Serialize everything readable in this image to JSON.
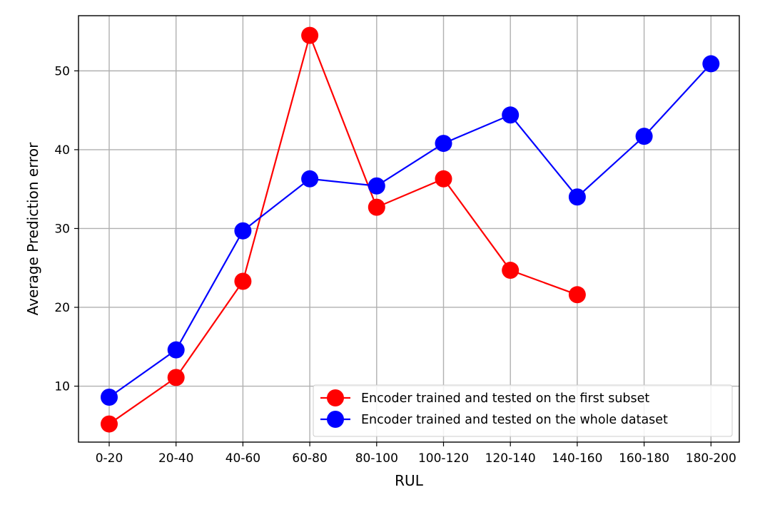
{
  "chart_data": {
    "type": "line",
    "title": "",
    "xlabel": "RUL",
    "ylabel": "Average Prediction error",
    "categories": [
      "0-20",
      "20-40",
      "40-60",
      "60-80",
      "80-100",
      "100-120",
      "120-140",
      "140-160",
      "160-180",
      "180-200"
    ],
    "yticks": [
      10,
      20,
      30,
      40,
      50
    ],
    "ylim": [
      2.9,
      57
    ],
    "grid": true,
    "legend_position": "lower-right",
    "series": [
      {
        "name": "Encoder trained and tested on the first subset",
        "color": "#ff0000",
        "values": [
          5.2,
          11.1,
          23.3,
          54.5,
          32.7,
          36.3,
          24.7,
          21.6,
          null,
          null
        ]
      },
      {
        "name": "Encoder trained and tested on the whole dataset",
        "color": "#0000ff",
        "values": [
          8.6,
          14.6,
          29.7,
          36.3,
          35.4,
          40.8,
          44.4,
          34.0,
          41.7,
          50.9
        ]
      }
    ]
  }
}
